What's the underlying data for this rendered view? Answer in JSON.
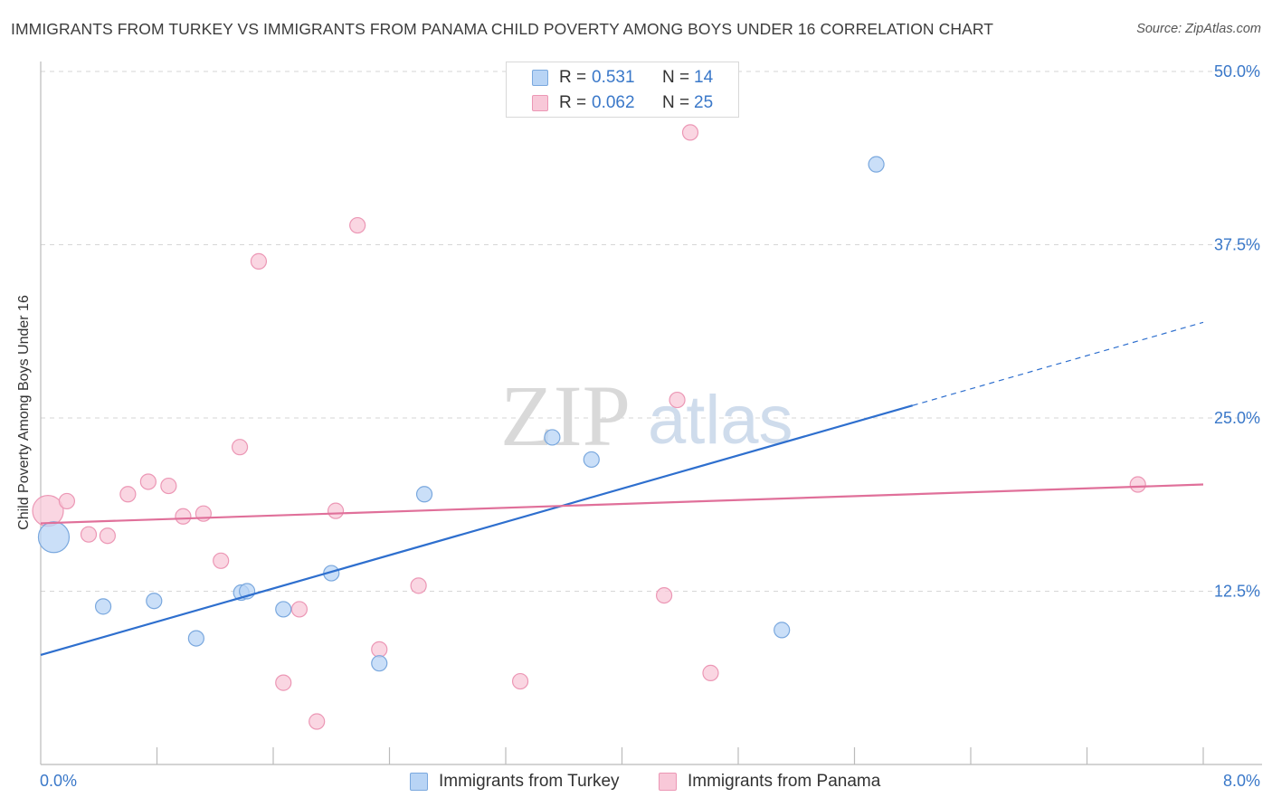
{
  "title": "IMMIGRANTS FROM TURKEY VS IMMIGRANTS FROM PANAMA CHILD POVERTY AMONG BOYS UNDER 16 CORRELATION CHART",
  "source": "Source: ZipAtlas.com",
  "watermark": {
    "zip": "ZIP",
    "atlas": "atlas"
  },
  "colors": {
    "turkey_fill": "#b8d4f5",
    "turkey_stroke": "#7aa8de",
    "turkey_line": "#2e6fce",
    "panama_fill": "#f8c8d8",
    "panama_stroke": "#ec97b5",
    "panama_line": "#e0709a",
    "tick_label": "#3a78c9",
    "grid": "#d6d6d6"
  },
  "legend_top": [
    {
      "r_label": "R =",
      "r_value": "0.531",
      "n_label": "N =",
      "n_value": "14"
    },
    {
      "r_label": "R =",
      "r_value": "0.062",
      "n_label": "N =",
      "n_value": "25"
    }
  ],
  "legend_bottom": [
    "Immigrants from Turkey",
    "Immigrants from Panama"
  ],
  "chart_data": {
    "type": "scatter",
    "title": "IMMIGRANTS FROM TURKEY VS IMMIGRANTS FROM PANAMA CHILD POVERTY AMONG BOYS UNDER 16 CORRELATION CHART",
    "xlabel": "",
    "ylabel": "Child Poverty Among Boys Under 16",
    "xlim": [
      0,
      8
    ],
    "ylim": [
      0,
      50
    ],
    "x_tick_labels": [
      "0.0%",
      "8.0%"
    ],
    "y_ticks": [
      12.5,
      25,
      37.5,
      50
    ],
    "y_tick_labels": [
      "12.5%",
      "25.0%",
      "37.5%",
      "50.0%"
    ],
    "grid": true,
    "legend_placement": "top-center",
    "series": [
      {
        "name": "Immigrants from Turkey",
        "r": 0.531,
        "n": 14,
        "points": [
          {
            "x": 0.09,
            "y": 16.4,
            "size": "large"
          },
          {
            "x": 0.43,
            "y": 11.4
          },
          {
            "x": 0.78,
            "y": 11.8
          },
          {
            "x": 1.07,
            "y": 9.1
          },
          {
            "x": 1.38,
            "y": 12.4
          },
          {
            "x": 1.67,
            "y": 11.2
          },
          {
            "x": 2.0,
            "y": 13.8
          },
          {
            "x": 2.33,
            "y": 7.3
          },
          {
            "x": 2.64,
            "y": 19.5
          },
          {
            "x": 3.52,
            "y": 23.6
          },
          {
            "x": 3.79,
            "y": 22.0
          },
          {
            "x": 5.1,
            "y": 9.7
          },
          {
            "x": 5.75,
            "y": 43.3
          },
          {
            "x": 1.42,
            "y": 12.5
          }
        ],
        "trend": {
          "x0": 0.0,
          "y0": 7.9,
          "x1": 6.0,
          "y1": 25.9,
          "dashed_to_x": 8.0,
          "dashed_to_y": 31.9
        }
      },
      {
        "name": "Immigrants from Panama",
        "r": 0.062,
        "n": 25,
        "points": [
          {
            "x": 0.05,
            "y": 18.3,
            "size": "large"
          },
          {
            "x": 0.18,
            "y": 19.0
          },
          {
            "x": 0.33,
            "y": 16.6
          },
          {
            "x": 0.46,
            "y": 16.5
          },
          {
            "x": 0.6,
            "y": 19.5
          },
          {
            "x": 0.74,
            "y": 20.4
          },
          {
            "x": 0.88,
            "y": 20.1
          },
          {
            "x": 0.98,
            "y": 17.9
          },
          {
            "x": 1.12,
            "y": 18.1
          },
          {
            "x": 1.24,
            "y": 14.7
          },
          {
            "x": 1.37,
            "y": 22.9
          },
          {
            "x": 1.5,
            "y": 36.3
          },
          {
            "x": 1.67,
            "y": 5.9
          },
          {
            "x": 1.78,
            "y": 11.2
          },
          {
            "x": 1.9,
            "y": 3.1
          },
          {
            "x": 2.03,
            "y": 18.3
          },
          {
            "x": 2.18,
            "y": 38.9
          },
          {
            "x": 2.33,
            "y": 8.3
          },
          {
            "x": 2.6,
            "y": 12.9
          },
          {
            "x": 3.3,
            "y": 6.0
          },
          {
            "x": 4.29,
            "y": 12.2
          },
          {
            "x": 4.38,
            "y": 26.3
          },
          {
            "x": 4.47,
            "y": 45.6
          },
          {
            "x": 4.61,
            "y": 6.6
          },
          {
            "x": 7.55,
            "y": 20.2
          }
        ],
        "trend": {
          "x0": 0.0,
          "y0": 17.4,
          "x1": 8.0,
          "y1": 20.2
        }
      }
    ]
  }
}
